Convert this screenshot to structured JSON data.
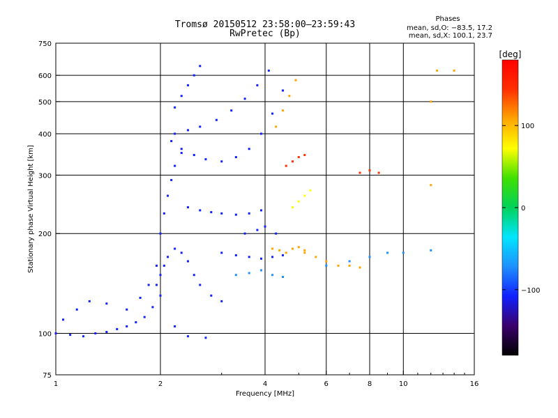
{
  "header": {
    "title_line1": "Tromsø 20150512 23:58:00—23:59:43",
    "title_line2": "RwPretec (Bp)"
  },
  "phases": {
    "title": "Phases",
    "line_o": "mean, sd,O: −83.5, 17.2",
    "line_x": "mean, sd,X: 100.1, 23.7"
  },
  "colorbar": {
    "label": "[deg]",
    "ticks": [
      {
        "value": 100,
        "label": "100"
      },
      {
        "value": 0,
        "label": "0"
      },
      {
        "value": -100,
        "label": "−100"
      }
    ],
    "range": [
      -180,
      180
    ],
    "colors": [
      "#000000",
      "#3b006b",
      "#1020ff",
      "#1e90ff",
      "#00e5ff",
      "#00d25a",
      "#40e000",
      "#ffff00",
      "#ffa500",
      "#ff3000",
      "#ff0000"
    ]
  },
  "chart_data": {
    "type": "scatter",
    "xlabel": "Frequency [MHz]",
    "ylabel": "Stationary phase Virtual Height [km]",
    "xscale": "log",
    "yscale": "log",
    "xlim": [
      1,
      16
    ],
    "ylim": [
      75,
      750
    ],
    "xticks": [
      1,
      2,
      4,
      6,
      8,
      10,
      16
    ],
    "xtick_labels": [
      "1",
      "2",
      "4",
      "6",
      "8",
      "10",
      "16"
    ],
    "yticks": [
      75,
      100,
      200,
      300,
      400,
      500,
      600,
      750
    ],
    "ytick_labels": [
      "75",
      "100",
      "200",
      "300",
      "400",
      "500",
      "600",
      "750"
    ],
    "grid_x": [
      2,
      4,
      6,
      8,
      10
    ],
    "grid_y": [
      100,
      200,
      300,
      400,
      500,
      600
    ],
    "point_value": "phase (deg)",
    "series": [
      {
        "x": [
          1.0,
          1.1,
          1.2,
          1.3,
          1.4,
          1.5,
          1.6,
          1.7,
          1.8,
          1.9,
          2.0,
          2.2,
          2.4,
          2.7
        ],
        "y": [
          100,
          99,
          98,
          100,
          101,
          103,
          105,
          108,
          112,
          120,
          130,
          105,
          98,
          97
        ],
        "phase": -100
      },
      {
        "x": [
          1.05,
          1.15,
          1.25,
          1.4,
          1.6,
          1.75,
          1.85,
          1.95
        ],
        "y": [
          110,
          118,
          125,
          123,
          118,
          128,
          140,
          160
        ],
        "phase": -105
      },
      {
        "x": [
          1.95,
          2.0,
          2.05,
          2.1,
          2.2,
          2.3,
          2.4,
          2.5,
          2.6,
          2.8,
          3.0
        ],
        "y": [
          140,
          150,
          160,
          170,
          180,
          175,
          165,
          150,
          140,
          130,
          125
        ],
        "phase": -95
      },
      {
        "x": [
          2.0,
          2.05,
          2.1,
          2.15,
          2.2,
          2.3
        ],
        "y": [
          200,
          230,
          260,
          290,
          320,
          350
        ],
        "phase": -100
      },
      {
        "x": [
          2.15,
          2.3,
          2.5,
          2.7,
          3.0,
          3.3,
          3.6,
          3.9,
          4.2,
          4.5
        ],
        "y": [
          380,
          360,
          345,
          335,
          330,
          340,
          360,
          400,
          460,
          540
        ],
        "phase": -110
      },
      {
        "x": [
          2.2,
          2.4,
          2.6,
          2.9,
          3.2,
          3.5,
          3.8,
          4.1
        ],
        "y": [
          400,
          410,
          420,
          440,
          470,
          510,
          560,
          620
        ],
        "phase": -105
      },
      {
        "x": [
          2.2,
          2.3,
          2.4,
          2.5,
          2.6
        ],
        "y": [
          480,
          520,
          560,
          600,
          640
        ],
        "phase": -100
      },
      {
        "x": [
          2.4,
          2.6,
          2.8,
          3.0,
          3.3,
          3.6,
          3.9
        ],
        "y": [
          240,
          235,
          232,
          230,
          228,
          230,
          235
        ],
        "phase": -95
      },
      {
        "x": [
          3.0,
          3.3,
          3.6,
          3.9,
          4.2,
          4.5
        ],
        "y": [
          175,
          172,
          170,
          168,
          170,
          172
        ],
        "phase": -100
      },
      {
        "x": [
          3.3,
          3.6,
          3.9,
          4.2,
          4.5
        ],
        "y": [
          150,
          152,
          155,
          150,
          148
        ],
        "phase": -90
      },
      {
        "x": [
          3.5,
          3.8,
          4.0,
          4.3
        ],
        "y": [
          200,
          205,
          210,
          200
        ],
        "phase": -95
      },
      {
        "x": [
          4.2,
          4.4,
          4.6,
          4.8,
          5.0,
          5.2
        ],
        "y": [
          180,
          178,
          175,
          180,
          182,
          178
        ],
        "phase": 120
      },
      {
        "x": [
          4.3,
          4.5,
          4.7,
          4.9
        ],
        "y": [
          420,
          470,
          520,
          580
        ],
        "phase": 110
      },
      {
        "x": [
          5.2,
          5.6,
          6.0,
          6.5,
          7.0,
          7.5
        ],
        "y": [
          175,
          170,
          165,
          160,
          160,
          158
        ],
        "phase": 100
      },
      {
        "x": [
          4.6,
          4.8,
          5.0,
          5.2
        ],
        "y": [
          320,
          330,
          340,
          345
        ],
        "phase": 150
      },
      {
        "x": [
          4.8,
          5.0,
          5.2,
          5.4
        ],
        "y": [
          240,
          250,
          260,
          270
        ],
        "phase": 80
      },
      {
        "x": [
          7.5,
          8.0,
          8.5
        ],
        "y": [
          305,
          310,
          305
        ],
        "phase": 160
      },
      {
        "x": [
          6.0,
          7.0,
          8.0,
          9.0,
          10.0,
          12.0
        ],
        "y": [
          160,
          165,
          170,
          175,
          175,
          178
        ],
        "phase": -90
      },
      {
        "x": [
          12.0,
          12.0,
          12.5,
          14.0
        ],
        "y": [
          280,
          500,
          620,
          620
        ],
        "phase": 100
      }
    ]
  }
}
